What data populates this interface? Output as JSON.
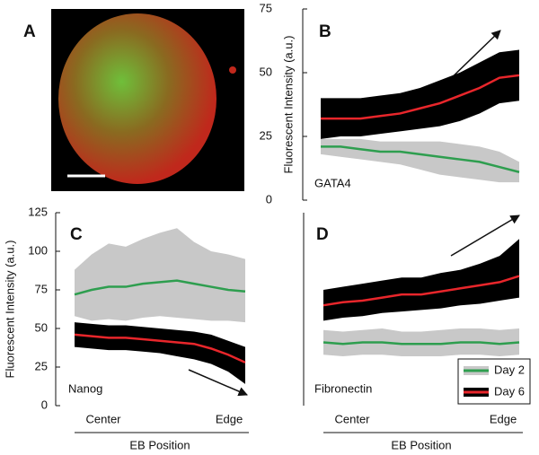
{
  "panel_a": {
    "label": "A"
  },
  "chart_data": [
    {
      "type": "band-line",
      "panel": "B",
      "annotation": "GATA4",
      "ylabel": "Fluorescent Intensity (a.u.)",
      "categories": [
        null,
        null,
        null,
        null,
        null,
        null,
        null,
        null,
        null,
        null,
        null
      ],
      "ylim": [
        0,
        75
      ],
      "yticks": [
        0,
        25,
        50,
        75
      ],
      "legend": false,
      "series": [
        {
          "name": "Day 2",
          "color": "#2e9e4f",
          "band_color": "#c8c8c8",
          "values": [
            21,
            21,
            20,
            19,
            19,
            18,
            17,
            16,
            15,
            13,
            11
          ],
          "lower": [
            18,
            17,
            16,
            15,
            14,
            12,
            10,
            9,
            8,
            7,
            7
          ],
          "upper": [
            24,
            24,
            24,
            23,
            23,
            23,
            23,
            22,
            21,
            19,
            15
          ]
        },
        {
          "name": "Day 6",
          "color": "#e8262b",
          "band_color": "#000000",
          "values": [
            32,
            32,
            32,
            33,
            34,
            36,
            38,
            41,
            44,
            48,
            49
          ],
          "lower": [
            24,
            25,
            25,
            26,
            27,
            28,
            29,
            31,
            34,
            38,
            39
          ],
          "upper": [
            40,
            40,
            40,
            41,
            42,
            44,
            47,
            50,
            54,
            58,
            59
          ]
        }
      ]
    },
    {
      "type": "band-line",
      "panel": "C",
      "annotation": "Nanog",
      "ylabel": "Fluorescent Intensity (a.u.)",
      "xlabel": "EB Position",
      "categories": [
        "Center",
        null,
        null,
        null,
        null,
        null,
        null,
        null,
        null,
        null,
        "Edge"
      ],
      "ylim": [
        0,
        125
      ],
      "yticks": [
        0,
        25,
        50,
        75,
        100,
        125
      ],
      "legend": false,
      "series": [
        {
          "name": "Day 2",
          "color": "#2e9e4f",
          "band_color": "#c8c8c8",
          "values": [
            72,
            75,
            77,
            77,
            79,
            80,
            81,
            79,
            77,
            75,
            74
          ],
          "lower": [
            58,
            55,
            56,
            55,
            57,
            58,
            57,
            56,
            55,
            55,
            54
          ],
          "upper": [
            88,
            98,
            105,
            103,
            108,
            112,
            115,
            106,
            100,
            98,
            95
          ]
        },
        {
          "name": "Day 6",
          "color": "#e8262b",
          "band_color": "#000000",
          "values": [
            46,
            45,
            44,
            44,
            43,
            42,
            41,
            40,
            37,
            33,
            28
          ],
          "lower": [
            38,
            37,
            36,
            36,
            35,
            34,
            32,
            30,
            27,
            22,
            14
          ],
          "upper": [
            54,
            53,
            52,
            52,
            51,
            50,
            49,
            48,
            46,
            42,
            38
          ]
        }
      ]
    },
    {
      "type": "band-line",
      "panel": "D",
      "annotation": "Fibronectin",
      "xlabel": "EB Position",
      "categories": [
        "Center",
        null,
        null,
        null,
        null,
        null,
        null,
        null,
        null,
        null,
        "Edge"
      ],
      "ylim": [
        0,
        125
      ],
      "legend": "lower right",
      "series": [
        {
          "name": "Day 2",
          "color": "#2e9e4f",
          "band_color": "#c8c8c8",
          "values": [
            41,
            40,
            41,
            41,
            40,
            40,
            40,
            41,
            41,
            40,
            41
          ],
          "lower": [
            33,
            32,
            33,
            33,
            32,
            32,
            32,
            33,
            33,
            32,
            33
          ],
          "upper": [
            49,
            48,
            49,
            50,
            48,
            48,
            49,
            50,
            50,
            49,
            50
          ]
        },
        {
          "name": "Day 6",
          "color": "#e8262b",
          "band_color": "#000000",
          "values": [
            65,
            67,
            68,
            70,
            72,
            72,
            74,
            76,
            78,
            80,
            84
          ],
          "lower": [
            55,
            57,
            58,
            60,
            61,
            62,
            63,
            65,
            66,
            68,
            70
          ],
          "upper": [
            75,
            77,
            79,
            81,
            83,
            83,
            86,
            88,
            92,
            97,
            108
          ]
        }
      ]
    }
  ]
}
